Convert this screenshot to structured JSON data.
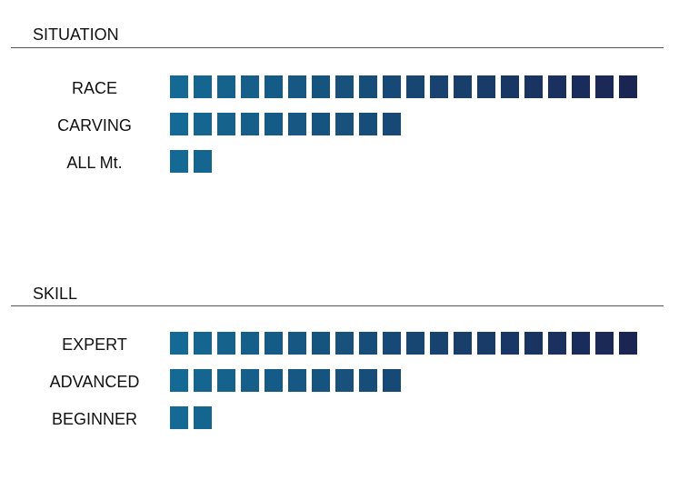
{
  "chart_data": [
    {
      "type": "bar",
      "title": "SITUATION",
      "categories": [
        "RACE",
        "CARVING",
        "ALL Mt."
      ],
      "values": [
        20,
        10,
        2
      ]
    },
    {
      "type": "bar",
      "title": "SKILL",
      "categories": [
        "EXPERT",
        "ADVANCED",
        "BEGINNER"
      ],
      "values": [
        20,
        10,
        2
      ]
    }
  ],
  "colors": {
    "start": "#146a94",
    "end": "#1b2554"
  }
}
